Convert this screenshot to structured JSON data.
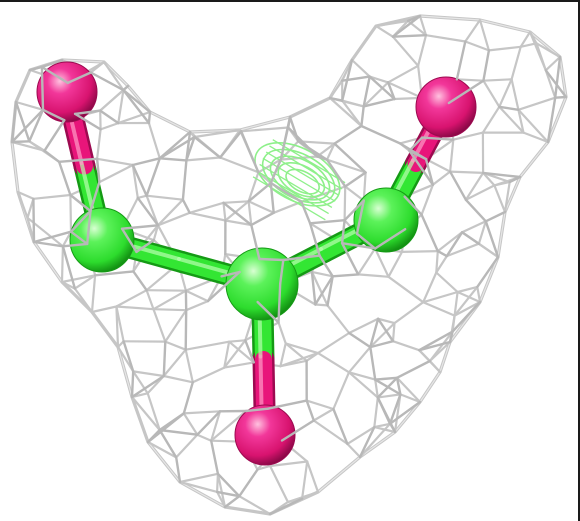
{
  "colors": {
    "background": "#ffffff",
    "frame": "#1a1a1a",
    "mesh": "#c6c6c6",
    "mesh_dark": "#9a9a9a",
    "difference_mesh": "#8ef08a",
    "carbon": "#33e633",
    "carbon_light": "#b8ffb0",
    "carbon_dark": "#159a15",
    "oxygen": "#e8157a",
    "oxygen_light": "#ff9cc8",
    "oxygen_dark": "#9c0a50"
  },
  "scene": {
    "type": "electron-density-map",
    "atoms": [
      {
        "element": "C",
        "role": "central"
      },
      {
        "element": "C",
        "role": "left-arm"
      },
      {
        "element": "C",
        "role": "right-arm"
      },
      {
        "element": "O",
        "role": "left-terminal"
      },
      {
        "element": "O",
        "role": "right-terminal"
      },
      {
        "element": "O",
        "role": "bottom-terminal"
      }
    ]
  }
}
